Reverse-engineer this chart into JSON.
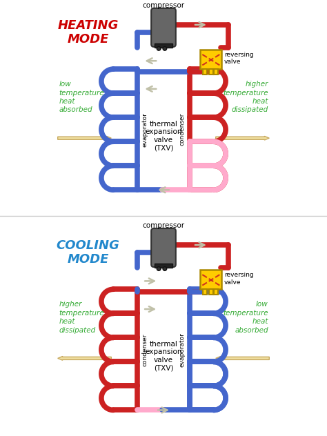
{
  "heating_mode_label": "HEATING\nMODE",
  "cooling_mode_label": "COOLING\nMODE",
  "compressor_label": "compressor",
  "reversing_valve_label": "reversing\nvalve",
  "txv_label": "thermal\nexpansion\nvalve\n(TXV)",
  "evaporator_label": "evaporator",
  "condenser_label": "condenser",
  "heating_left_text": "low\ntemperature\nheat\nabsorbed",
  "heating_right_text": "higher\ntemperature\nheat\ndissipated",
  "cooling_left_text": "higher\ntemperature\nheat\ndissipated",
  "cooling_right_text": "low\ntemperature\nheat\nabsorbed",
  "red": "#cc2222",
  "blue": "#4466cc",
  "pink": "#ffaacc",
  "light_pink": "#ffccdd",
  "dark_gray": "#555555",
  "yellow": "#ffcc00",
  "green": "#33aa33",
  "arrow_fill": "#f0dfa0",
  "arrow_edge": "#c8aa60",
  "bg": "#ffffff",
  "flow_arrow": "#c0c0a8",
  "heating_color": "#cc0000",
  "cooling_color": "#2288cc"
}
